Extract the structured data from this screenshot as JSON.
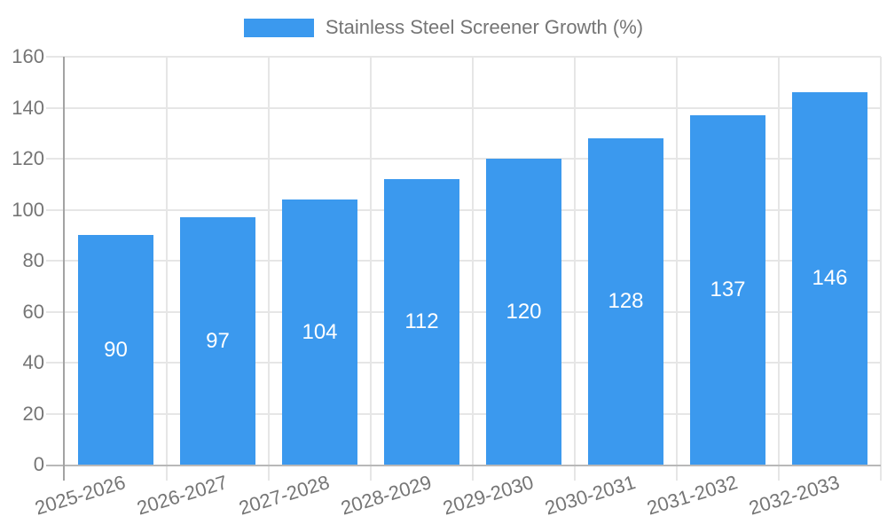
{
  "legend": {
    "label": "Stainless Steel Screener Growth (%)"
  },
  "style": {
    "bar_color": "#3B99EE",
    "text_color": "#757575",
    "grid_color": "#e6e6e6",
    "baseline_color": "#b8b8b8",
    "axis_color": "#a3a3a3",
    "bar_label_color": "#ffffff",
    "background_color": "#ffffff"
  },
  "chart_data": {
    "type": "bar",
    "title": "Stainless Steel Screener Growth (%)",
    "categories": [
      "2025-2026",
      "2026-2027",
      "2027-2028",
      "2028-2029",
      "2029-2030",
      "2030-2031",
      "2031-2032",
      "2032-2033"
    ],
    "values": [
      90,
      97,
      104,
      112,
      120,
      128,
      137,
      146
    ],
    "value_labels_visible": true,
    "value_label_position": "inside-center",
    "xlabel": "",
    "ylabel": "",
    "ylim": [
      0,
      160
    ],
    "yticks": [
      0,
      20,
      40,
      60,
      80,
      100,
      120,
      140,
      160
    ],
    "x_tick_rotation_deg": -17,
    "grid": true,
    "legend_position": "top-center"
  }
}
